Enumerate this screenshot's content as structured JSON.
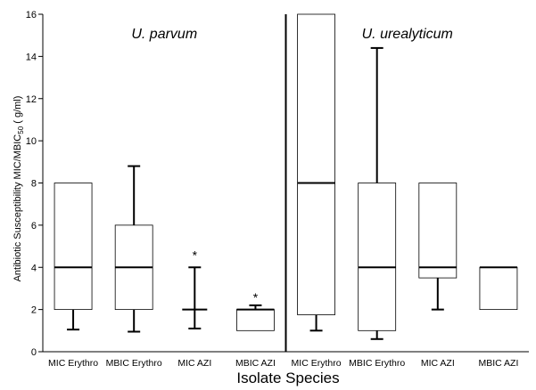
{
  "chart_data": {
    "type": "box",
    "xlabel": "Isolate Species",
    "ylabel": "Antibiotic Susceptibility MIC/MBIC",
    "ylabel_sub": "50",
    "ylabel_unit": " ( g/ml)",
    "ylim": [
      0,
      16
    ],
    "yticks": [
      0,
      2,
      4,
      6,
      8,
      10,
      12,
      14,
      16
    ],
    "grid": false,
    "groups": [
      {
        "name": "U. parvum",
        "categories": [
          "MIC Erythro",
          "MBIC Erythro",
          "MIC AZI",
          "MBIC AZI"
        ]
      },
      {
        "name": "U. urealyticum",
        "categories": [
          "MIC Erythro",
          "MBIC Erythro",
          "MIC AZI",
          "MBIC AZI"
        ]
      }
    ],
    "boxes": [
      {
        "label": "MIC Erythro",
        "group": "U. parvum",
        "whisker_low": 1.05,
        "q1": 2,
        "median": 4,
        "q3": 8,
        "whisker_high": 8,
        "outlier_marker": ""
      },
      {
        "label": "MBIC Erythro",
        "group": "U. parvum",
        "whisker_low": 0.95,
        "q1": 2,
        "median": 4,
        "q3": 6,
        "whisker_high": 8.8,
        "outlier_marker": ""
      },
      {
        "label": "MIC AZI",
        "group": "U. parvum",
        "whisker_low": 1.1,
        "q1": 2,
        "median": 2,
        "q3": 2,
        "whisker_high": 4,
        "outlier_marker": "*",
        "outlier_value": 4.7
      },
      {
        "label": "MBIC AZI",
        "group": "U. parvum",
        "whisker_low": 1,
        "q1": 1,
        "median": 2,
        "q3": 2,
        "whisker_high": 2.2,
        "outlier_marker": "*",
        "outlier_value": 2.7
      },
      {
        "label": "MIC Erythro",
        "group": "U. urealyticum",
        "whisker_low": 1,
        "q1": 1.75,
        "median": 8,
        "q3": 16,
        "whisker_high": 16,
        "outlier_marker": ""
      },
      {
        "label": "MBIC Erythro",
        "group": "U. urealyticum",
        "whisker_low": 0.6,
        "q1": 1,
        "median": 4,
        "q3": 8,
        "whisker_high": 14.4,
        "outlier_marker": ""
      },
      {
        "label": "MIC AZI",
        "group": "U. urealyticum",
        "whisker_low": 2,
        "q1": 3.5,
        "median": 4,
        "q3": 8,
        "whisker_high": 8,
        "outlier_marker": ""
      },
      {
        "label": "MBIC AZI",
        "group": "U. urealyticum",
        "whisker_low": 2,
        "q1": 2,
        "median": 4,
        "q3": 4,
        "whisker_high": 4,
        "outlier_marker": ""
      }
    ]
  }
}
